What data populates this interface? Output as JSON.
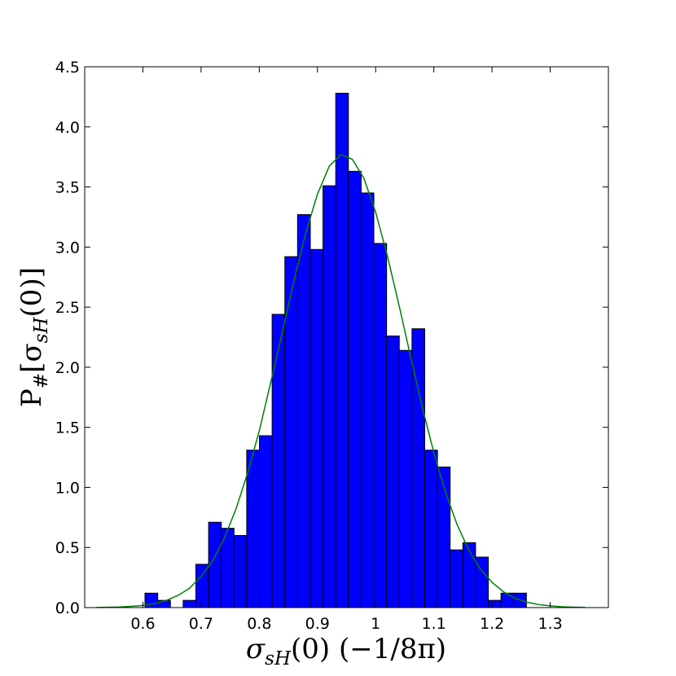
{
  "chart_data": {
    "type": "histogram",
    "xlabel": {
      "symbol": "σ",
      "subscript": "sH",
      "rest": "(0) (−1/8π)"
    },
    "ylabel": {
      "prefix": "P",
      "sub1": "#",
      "open": "[σ",
      "sub2": "sH",
      "end": "(0)]"
    },
    "bins": [
      0.6036,
      0.6255,
      0.6473,
      0.6692,
      0.691,
      0.7129,
      0.7347,
      0.7566,
      0.7784,
      0.8003,
      0.8221,
      0.844,
      0.8658,
      0.8877,
      0.9095,
      0.9314,
      0.9532,
      0.9751,
      0.9969,
      1.0188,
      1.0406,
      1.0625,
      1.0843,
      1.1062,
      1.128,
      1.1499,
      1.1717,
      1.1936,
      1.2154,
      1.2373,
      1.2591
    ],
    "values": [
      0.12,
      0.06,
      0,
      0.06,
      0.36,
      0.71,
      0.66,
      0.6,
      1.31,
      1.43,
      2.44,
      2.92,
      3.27,
      2.98,
      3.51,
      4.28,
      3.63,
      3.45,
      3.03,
      2.26,
      2.14,
      2.32,
      1.31,
      1.17,
      0.48,
      0.54,
      0.42,
      0.06,
      0.12,
      0.12
    ],
    "color": "#0000ff",
    "curve": {
      "color": "#008000",
      "x": [
        0.52,
        0.54,
        0.56,
        0.58,
        0.6,
        0.62,
        0.64,
        0.66,
        0.68,
        0.7,
        0.72,
        0.74,
        0.76,
        0.78,
        0.8,
        0.82,
        0.84,
        0.86,
        0.88,
        0.9,
        0.92,
        0.94,
        0.96,
        0.98,
        1.0,
        1.02,
        1.04,
        1.06,
        1.08,
        1.1,
        1.12,
        1.14,
        1.16,
        1.18,
        1.2,
        1.22,
        1.24,
        1.26,
        1.28,
        1.3,
        1.32,
        1.34,
        1.36
      ],
      "values": [
        0.0012,
        0.0025,
        0.005,
        0.0098,
        0.018,
        0.034,
        0.059,
        0.1,
        0.16,
        0.26,
        0.39,
        0.58,
        0.82,
        1.12,
        1.47,
        1.88,
        2.3,
        2.73,
        3.12,
        3.44,
        3.67,
        3.77,
        3.73,
        3.57,
        3.29,
        2.93,
        2.52,
        2.09,
        1.67,
        1.29,
        0.96,
        0.69,
        0.48,
        0.32,
        0.21,
        0.13,
        0.077,
        0.045,
        0.025,
        0.014,
        0.007,
        0.0035,
        0.0017
      ]
    },
    "xlim": [
      0.5,
      1.4
    ],
    "ylim": [
      0,
      4.5
    ],
    "xticks": [
      0.6,
      0.7,
      0.8,
      0.9,
      1.0,
      1.1,
      1.2,
      1.3
    ],
    "yticks": [
      {
        "value": 0,
        "label": "0.0"
      },
      0.5,
      {
        "value": 1,
        "label": "1.0"
      },
      1.5,
      {
        "value": 2,
        "label": "2.0"
      },
      2.5,
      {
        "value": 3,
        "label": "3.0"
      },
      3.5,
      {
        "value": 4,
        "label": "4.0"
      },
      4.5
    ]
  }
}
